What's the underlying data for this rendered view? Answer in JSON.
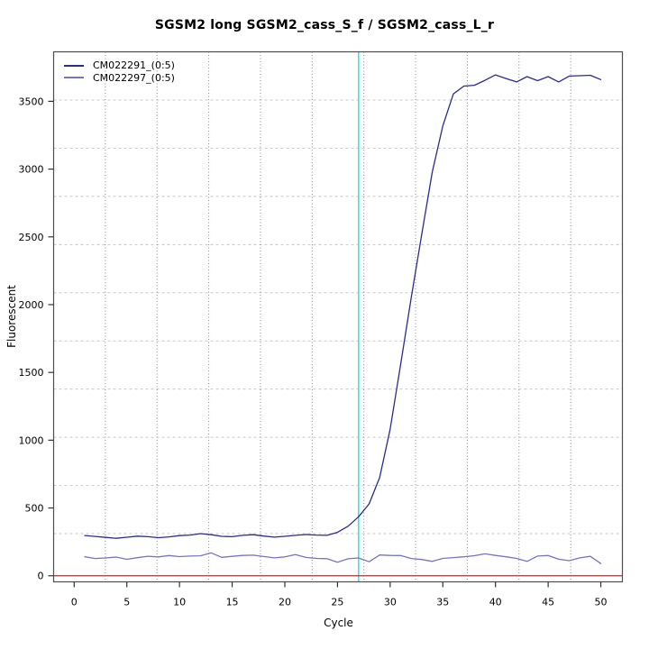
{
  "figure": {
    "title": "SGSM2 long SGSM2_cass_S_f / SGSM2_cass_L_r"
  },
  "chart_data": {
    "type": "line",
    "title": "SGSM2 long SGSM2_cass_S_f / SGSM2_cass_L_r",
    "xlabel": "Cycle",
    "ylabel": "Fluorescent",
    "xlim": [
      -1.95,
      52.05
    ],
    "ylim": [
      -45,
      3865
    ],
    "x_ticks": [
      0,
      5,
      10,
      15,
      20,
      25,
      30,
      35,
      40,
      45,
      50
    ],
    "y_ticks": [
      0,
      500,
      1000,
      1500,
      2000,
      2500,
      3000,
      3500
    ],
    "grid": {
      "nx": 11,
      "ny": 11,
      "h_color": "#c8c8c8",
      "v_color": "#8a8a8a"
    },
    "legend_position": "top-left",
    "threshold_line": {
      "axis": "x",
      "value": 27,
      "color": "#3be3e3"
    },
    "zero_line": {
      "axis": "y",
      "value": 0,
      "color": "#a03636"
    },
    "axis_color": "#4d4d4d",
    "tick_color": "#333333",
    "x": [
      1,
      2,
      3,
      4,
      5,
      6,
      7,
      8,
      9,
      10,
      11,
      12,
      13,
      14,
      15,
      16,
      17,
      18,
      19,
      20,
      21,
      22,
      23,
      24,
      25,
      26,
      27,
      28,
      29,
      30,
      31,
      32,
      33,
      34,
      35,
      36,
      37,
      38,
      39,
      40,
      41,
      42,
      43,
      44,
      45,
      46,
      47,
      48,
      49,
      50
    ],
    "series": [
      {
        "name": "CM022291_(0:5)",
        "color": "#2b2b92",
        "values": [
          297,
          290,
          283,
          276,
          284,
          292,
          288,
          281,
          287,
          296,
          300,
          311,
          303,
          291,
          288,
          298,
          303,
          293,
          285,
          291,
          298,
          304,
          300,
          298,
          320,
          365,
          435,
          530,
          725,
          1080,
          1560,
          2050,
          2520,
          2980,
          3320,
          3555,
          3612,
          3618,
          3655,
          3695,
          3668,
          3643,
          3682,
          3652,
          3682,
          3643,
          3686,
          3689,
          3692,
          3660
        ]
      },
      {
        "name": "CM022297_(0:5)",
        "color": "#7575c4",
        "values": [
          140,
          127,
          131,
          138,
          121,
          133,
          144,
          139,
          149,
          141,
          145,
          147,
          169,
          136,
          143,
          150,
          152,
          142,
          132,
          139,
          156,
          135,
          128,
          126,
          100,
          125,
          131,
          103,
          153,
          150,
          149,
          127,
          120,
          106,
          128,
          134,
          140,
          148,
          162,
          150,
          140,
          128,
          106,
          145,
          149,
          122,
          111,
          132,
          143,
          90
        ]
      }
    ]
  }
}
